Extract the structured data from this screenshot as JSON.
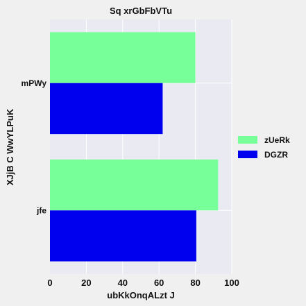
{
  "chart_data": {
    "type": "bar",
    "orientation": "horizontal",
    "title": "Sq xrGbFbVTu",
    "xlabel": "ubKkOnqALzt J",
    "ylabel": "XJjB C WwYLPuK",
    "categories": [
      "mPWy",
      "jfe"
    ],
    "series": [
      {
        "name": "zUeRk",
        "values": [
          80,
          92.5
        ],
        "color": "#77ff99"
      },
      {
        "name": "DGZR",
        "values": [
          62,
          80.5
        ],
        "color": "#0000ee"
      }
    ],
    "xlim": [
      0,
      100
    ],
    "xticks": [
      0,
      20,
      40,
      60,
      80,
      100
    ],
    "grid": true,
    "legend_position": "right",
    "plot_background": "#eaeaf2"
  }
}
